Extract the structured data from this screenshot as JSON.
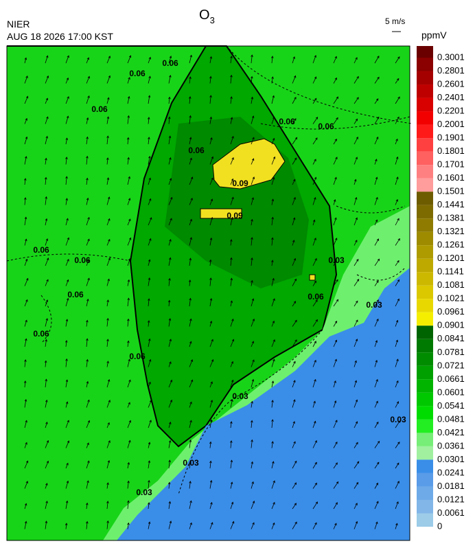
{
  "header": {
    "agency": "NIER",
    "datetime": "AUG 18 2026 17:00 KST",
    "title": {
      "main": "O",
      "subscript": "3"
    },
    "wind_scale": "5 m/s",
    "unit": "ppmV"
  },
  "colorbar": {
    "labels": [
      0.3001,
      0.2801,
      0.2601,
      0.2401,
      0.2201,
      0.2001,
      0.1901,
      0.1801,
      0.1701,
      0.1601,
      0.1501,
      0.1441,
      0.1381,
      0.1321,
      0.1261,
      0.1201,
      0.1141,
      0.1081,
      0.1021,
      0.0961,
      0.0901,
      0.0841,
      0.0781,
      0.0721,
      0.0661,
      0.0601,
      0.0541,
      0.0481,
      0.0421,
      0.0361,
      0.0301,
      0.0241,
      0.0181,
      0.0121,
      0.0061,
      0
    ],
    "colors": [
      "#6b0000",
      "#8b0000",
      "#a50000",
      "#bf0000",
      "#d90000",
      "#f20000",
      "#ff1a1a",
      "#ff4040",
      "#ff6060",
      "#ff8080",
      "#ff9c9c",
      "#6e5c00",
      "#7e6b00",
      "#8e7b00",
      "#9e8b00",
      "#ae9b00",
      "#bea900",
      "#cdb800",
      "#dbc800",
      "#e8d800",
      "#f5ee00",
      "#006400",
      "#007a00",
      "#008c00",
      "#00a000",
      "#00b400",
      "#00c800",
      "#00dc00",
      "#22ee22",
      "#77ee77",
      "#a0f0a0",
      "#3a8ee8",
      "#5a9ce8",
      "#6eaae8",
      "#82b6e8",
      "#9ccce8"
    ]
  },
  "contour_labels": [
    "0.06",
    "0.06",
    "0.06",
    "0.06",
    "0.06",
    "0.06",
    "0.06",
    "0.06",
    "0.06",
    "0.06",
    "0.06",
    "0.09",
    "0.09",
    "0.06",
    "0.03",
    "0.03",
    "0.03",
    "0.03",
    "0.03",
    "0.03"
  ]
}
